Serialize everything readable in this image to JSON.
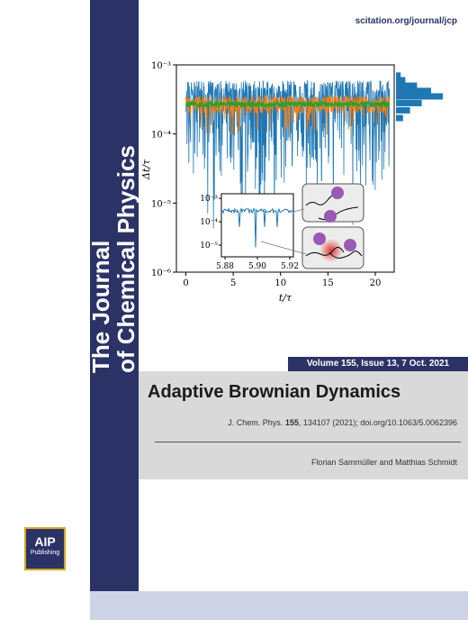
{
  "journal": {
    "title_line1": "The Journal",
    "title_line2": "of Chemical Physics",
    "url": "scitation.org/journal/jcp"
  },
  "publisher": {
    "logo_big": "AIP",
    "logo_small": "Publishing"
  },
  "issue": {
    "volume_text": "Volume 155, Issue 13, 7 Oct. 2021"
  },
  "article": {
    "title": "Adaptive Brownian Dynamics",
    "citation_prefix": "J. Chem. Phys. ",
    "citation_volume": "155",
    "citation_suffix": ", 134107 (2021); doi.org/10.1063/5.0062396",
    "authors": "Florian Sammüller and Matthias Schmidt"
  },
  "colors": {
    "spine": "#2b3266",
    "series_blue": "#1f77b4",
    "series_orange": "#ff7f0e",
    "series_green": "#2ca02c",
    "accent_gold": "#d9a624",
    "particle": "#9b59b6"
  },
  "chart_data": {
    "type": "line",
    "scale_y": "log",
    "xlabel": "t/τ",
    "ylabel": "Δt/τ",
    "xlim": [
      -1,
      22
    ],
    "ylim": [
      1e-06,
      0.001
    ],
    "x_ticks": [
      "0",
      "5",
      "10",
      "15",
      "20"
    ],
    "y_ticks": [
      "10⁻⁶",
      "10⁻⁵",
      "10⁻⁴",
      "10⁻³"
    ],
    "series": [
      {
        "color": "#1f77b4",
        "mean": 0.00035,
        "min_typical": 5e-05
      },
      {
        "color": "#ff7f0e",
        "mean": 0.00028,
        "min_typical": 0.00018
      },
      {
        "color": "#2ca02c",
        "mean": 0.00027,
        "min_typical": 0.00025
      }
    ],
    "inset": {
      "xlim": [
        5.875,
        5.925
      ],
      "x_ticks": [
        "5.88",
        "5.90",
        "5.92"
      ],
      "y_ticks": [
        "10⁻⁵",
        "10⁻⁴",
        "10⁻³"
      ]
    }
  }
}
